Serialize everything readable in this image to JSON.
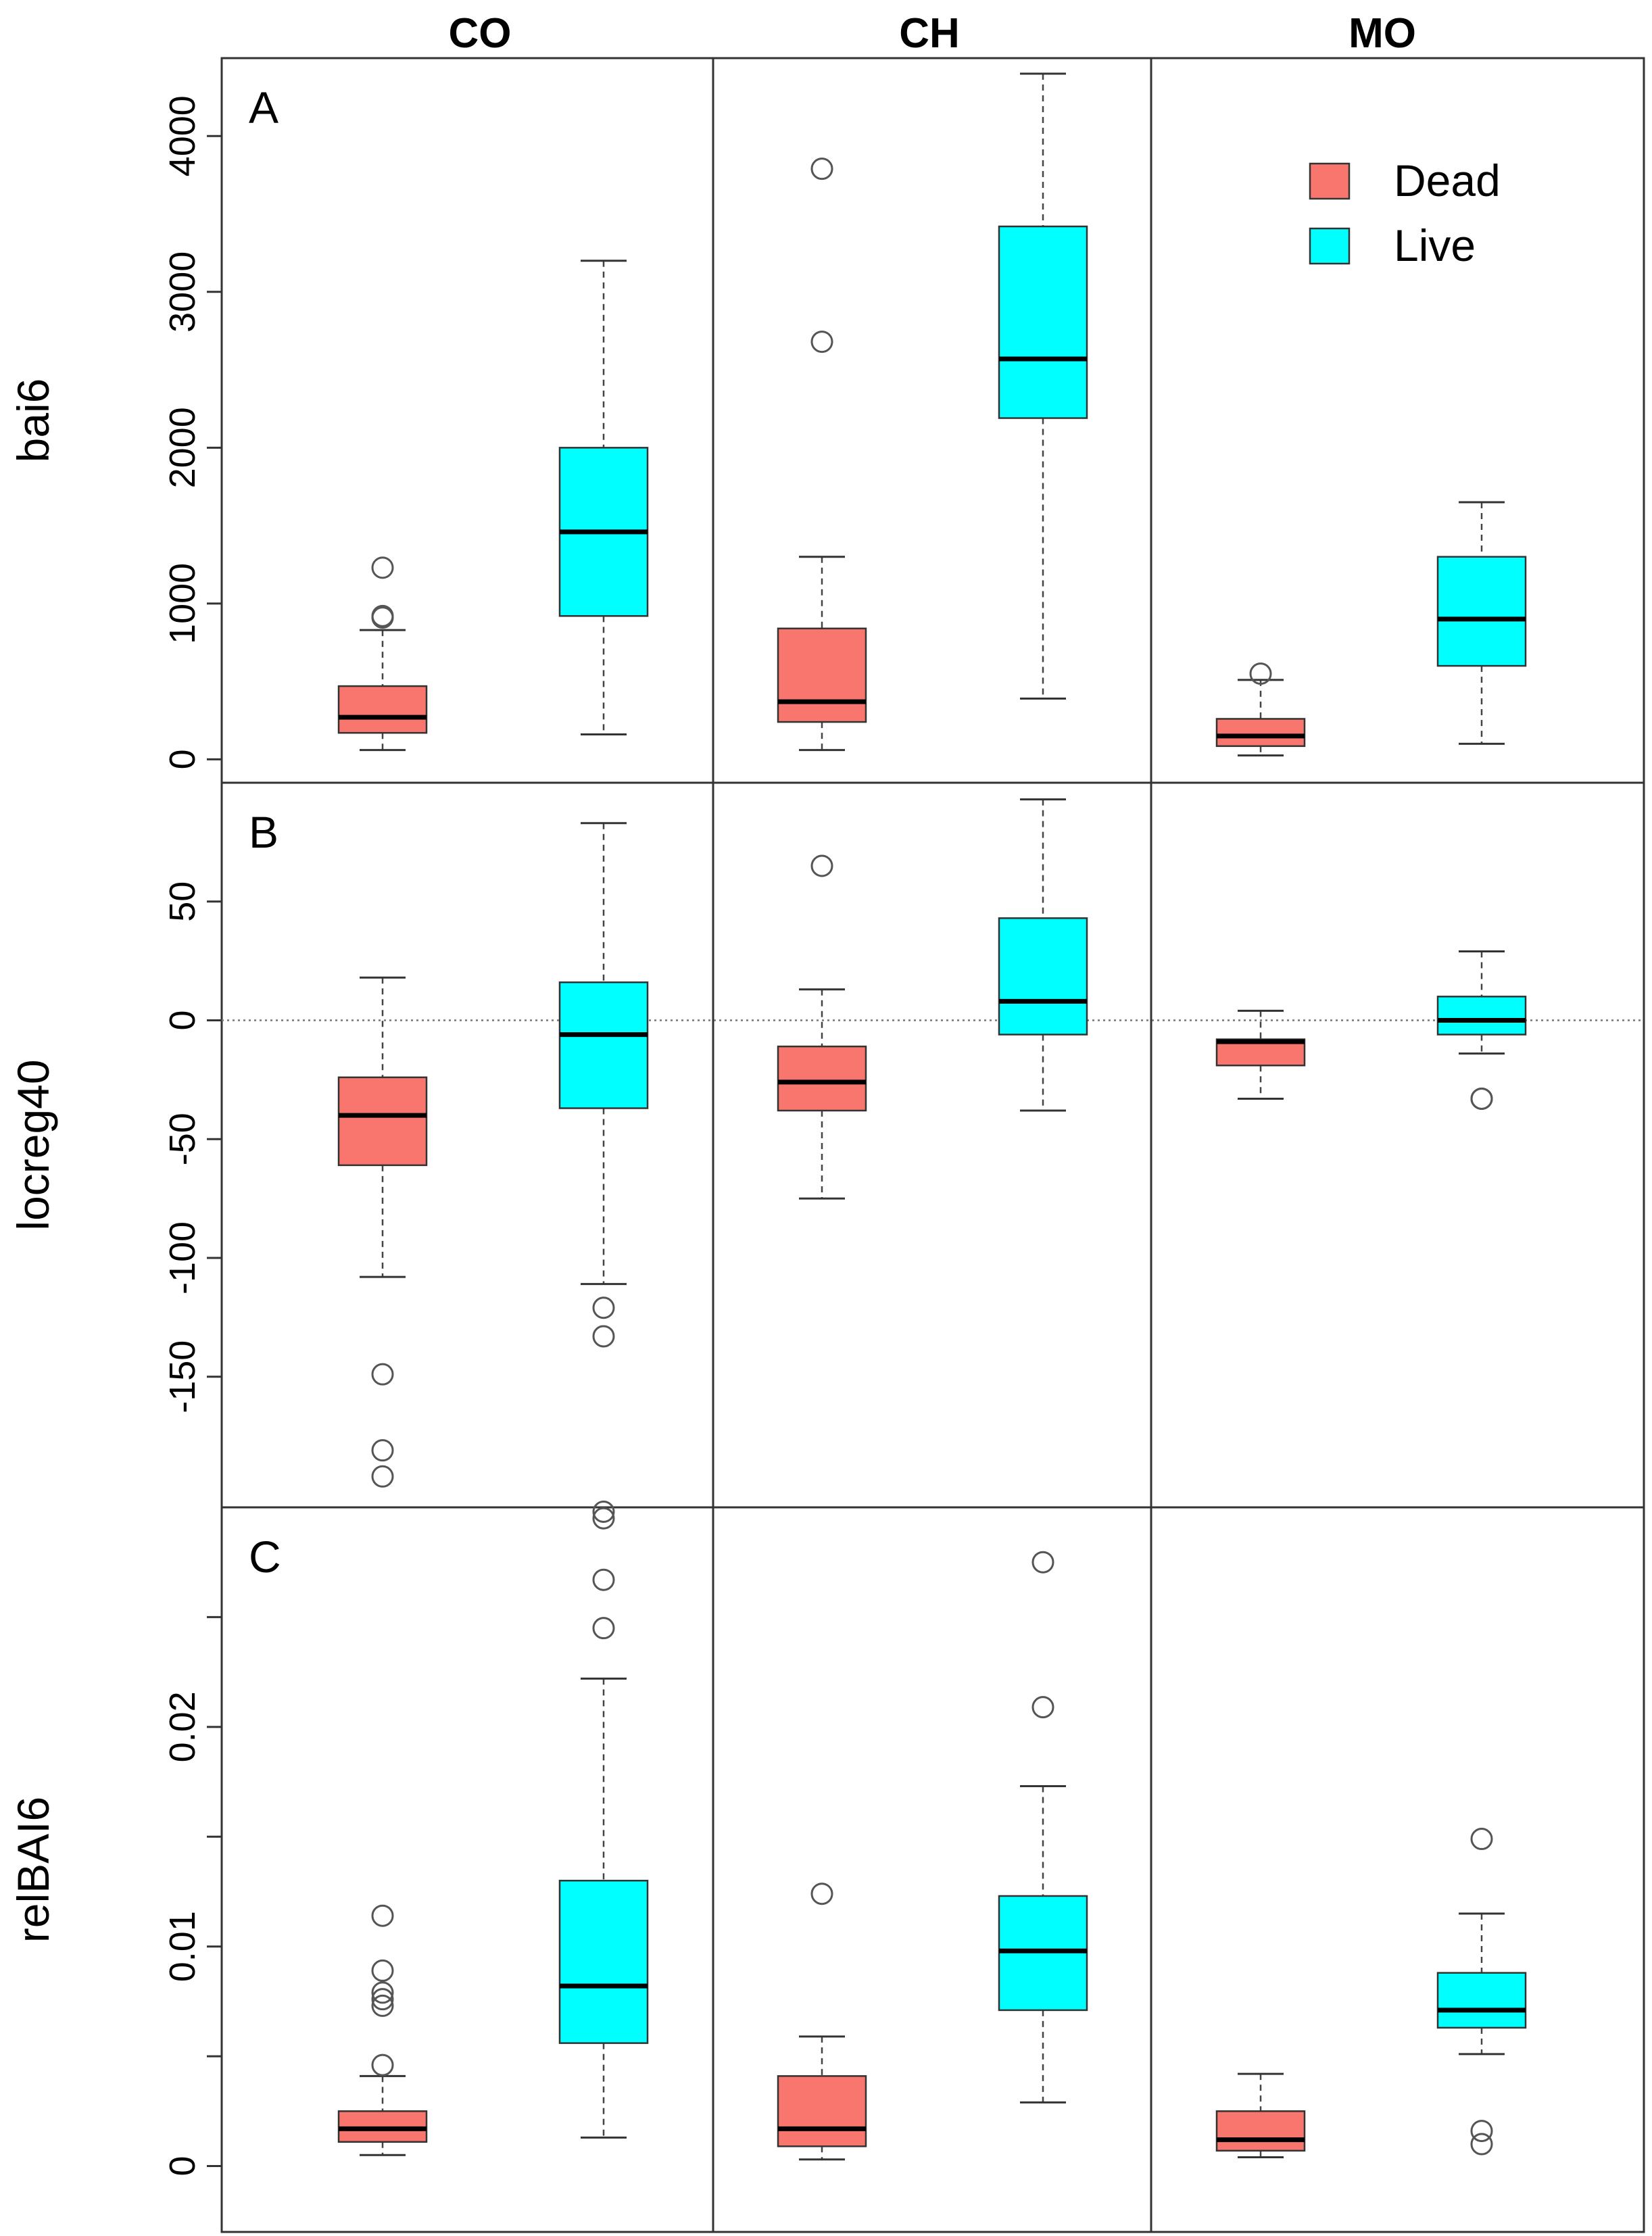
{
  "chart_data": {
    "type": "boxplot",
    "columns": [
      "CO",
      "CH",
      "MO"
    ],
    "legend": {
      "position": "top-right",
      "entries": [
        {
          "label": "Dead",
          "color": "#F8766D"
        },
        {
          "label": "Live",
          "color": "#00FFFF"
        }
      ]
    },
    "panels": [
      {
        "letter": "A",
        "ylabel": "bai6",
        "ylim": [
          -150,
          4500
        ],
        "yticks": [
          0,
          1000,
          2000,
          3000,
          4000
        ],
        "ytick_labels": [
          "0",
          "1000",
          "2000",
          "3000",
          "4000"
        ],
        "refline": null,
        "groups": [
          {
            "column": "CO",
            "status": "Dead",
            "whisker_low": 60,
            "q1": 170,
            "median": 270,
            "q3": 470,
            "whisker_high": 830,
            "outliers": [
              910,
              920,
              1230
            ]
          },
          {
            "column": "CO",
            "status": "Live",
            "whisker_low": 160,
            "q1": 920,
            "median": 1460,
            "q3": 2000,
            "whisker_high": 3200,
            "outliers": []
          },
          {
            "column": "CH",
            "status": "Dead",
            "whisker_low": 60,
            "q1": 240,
            "median": 370,
            "q3": 840,
            "whisker_high": 1300,
            "outliers": [
              2680,
              3790
            ]
          },
          {
            "column": "CH",
            "status": "Live",
            "whisker_low": 390,
            "q1": 2190,
            "median": 2570,
            "q3": 3420,
            "whisker_high": 4400,
            "outliers": []
          },
          {
            "column": "MO",
            "status": "Dead",
            "whisker_low": 25,
            "q1": 85,
            "median": 150,
            "q3": 260,
            "whisker_high": 510,
            "outliers": [
              550
            ]
          },
          {
            "column": "MO",
            "status": "Live",
            "whisker_low": 100,
            "q1": 600,
            "median": 900,
            "q3": 1300,
            "whisker_high": 1650,
            "outliers": []
          }
        ]
      },
      {
        "letter": "B",
        "ylabel": "locreg40",
        "ylim": [
          -205,
          100
        ],
        "yticks": [
          -150,
          -100,
          -50,
          0,
          50
        ],
        "ytick_labels": [
          "-150",
          "-100",
          "-50",
          "0",
          "50"
        ],
        "refline": 0,
        "groups": [
          {
            "column": "CO",
            "status": "Dead",
            "whisker_low": -108,
            "q1": -61,
            "median": -40,
            "q3": -24,
            "whisker_high": 18,
            "outliers": [
              -149,
              -181,
              -192
            ]
          },
          {
            "column": "CO",
            "status": "Live",
            "whisker_low": -111,
            "q1": -37,
            "median": -6,
            "q3": 16,
            "whisker_high": 83,
            "outliers": [
              -121,
              -133
            ]
          },
          {
            "column": "CH",
            "status": "Dead",
            "whisker_low": -75,
            "q1": -38,
            "median": -26,
            "q3": -11,
            "whisker_high": 13,
            "outliers": [
              65
            ]
          },
          {
            "column": "CH",
            "status": "Live",
            "whisker_low": -38,
            "q1": -6,
            "median": 8,
            "q3": 43,
            "whisker_high": 93,
            "outliers": []
          },
          {
            "column": "MO",
            "status": "Dead",
            "whisker_low": -33,
            "q1": -19,
            "median": -9,
            "q3": -8,
            "whisker_high": 4,
            "outliers": []
          },
          {
            "column": "MO",
            "status": "Live",
            "whisker_low": -14,
            "q1": -6,
            "median": 0,
            "q3": 10,
            "whisker_high": 29,
            "outliers": [
              -33,
              -33
            ]
          }
        ]
      },
      {
        "letter": "C",
        "ylabel": "relBAI6",
        "ylim": [
          -0.003,
          0.03
        ],
        "yticks": [
          0,
          0.005,
          0.01,
          0.015,
          0.02,
          0.025
        ],
        "ytick_labels": [
          "0",
          "",
          "0.01",
          "",
          "0.02",
          ""
        ],
        "refline": null,
        "groups": [
          {
            "column": "CO",
            "status": "Dead",
            "whisker_low": 0.0005,
            "q1": 0.0011,
            "median": 0.0017,
            "q3": 0.0025,
            "whisker_high": 0.0041,
            "outliers": [
              0.0046,
              0.0073,
              0.0076,
              0.0079,
              0.0089,
              0.0114
            ]
          },
          {
            "column": "CO",
            "status": "Live",
            "whisker_low": 0.0013,
            "q1": 0.0056,
            "median": 0.0082,
            "q3": 0.013,
            "whisker_high": 0.0222,
            "outliers": [
              0.0245,
              0.0267,
              0.0295,
              0.0298
            ]
          },
          {
            "column": "CH",
            "status": "Dead",
            "whisker_low": 0.0003,
            "q1": 0.0009,
            "median": 0.0017,
            "q3": 0.0041,
            "whisker_high": 0.0059,
            "outliers": [
              0.0124
            ]
          },
          {
            "column": "CH",
            "status": "Live",
            "whisker_low": 0.0029,
            "q1": 0.0071,
            "median": 0.0098,
            "q3": 0.0123,
            "whisker_high": 0.0173,
            "outliers": [
              0.0209,
              0.0275
            ]
          },
          {
            "column": "MO",
            "status": "Dead",
            "whisker_low": 0.0004,
            "q1": 0.0007,
            "median": 0.0012,
            "q3": 0.0025,
            "whisker_high": 0.0042,
            "outliers": []
          },
          {
            "column": "MO",
            "status": "Live",
            "whisker_low": 0.0051,
            "q1": 0.0063,
            "median": 0.0071,
            "q3": 0.0088,
            "whisker_high": 0.0115,
            "outliers": [
              0.001,
              0.0016,
              0.0149
            ]
          }
        ]
      }
    ]
  }
}
